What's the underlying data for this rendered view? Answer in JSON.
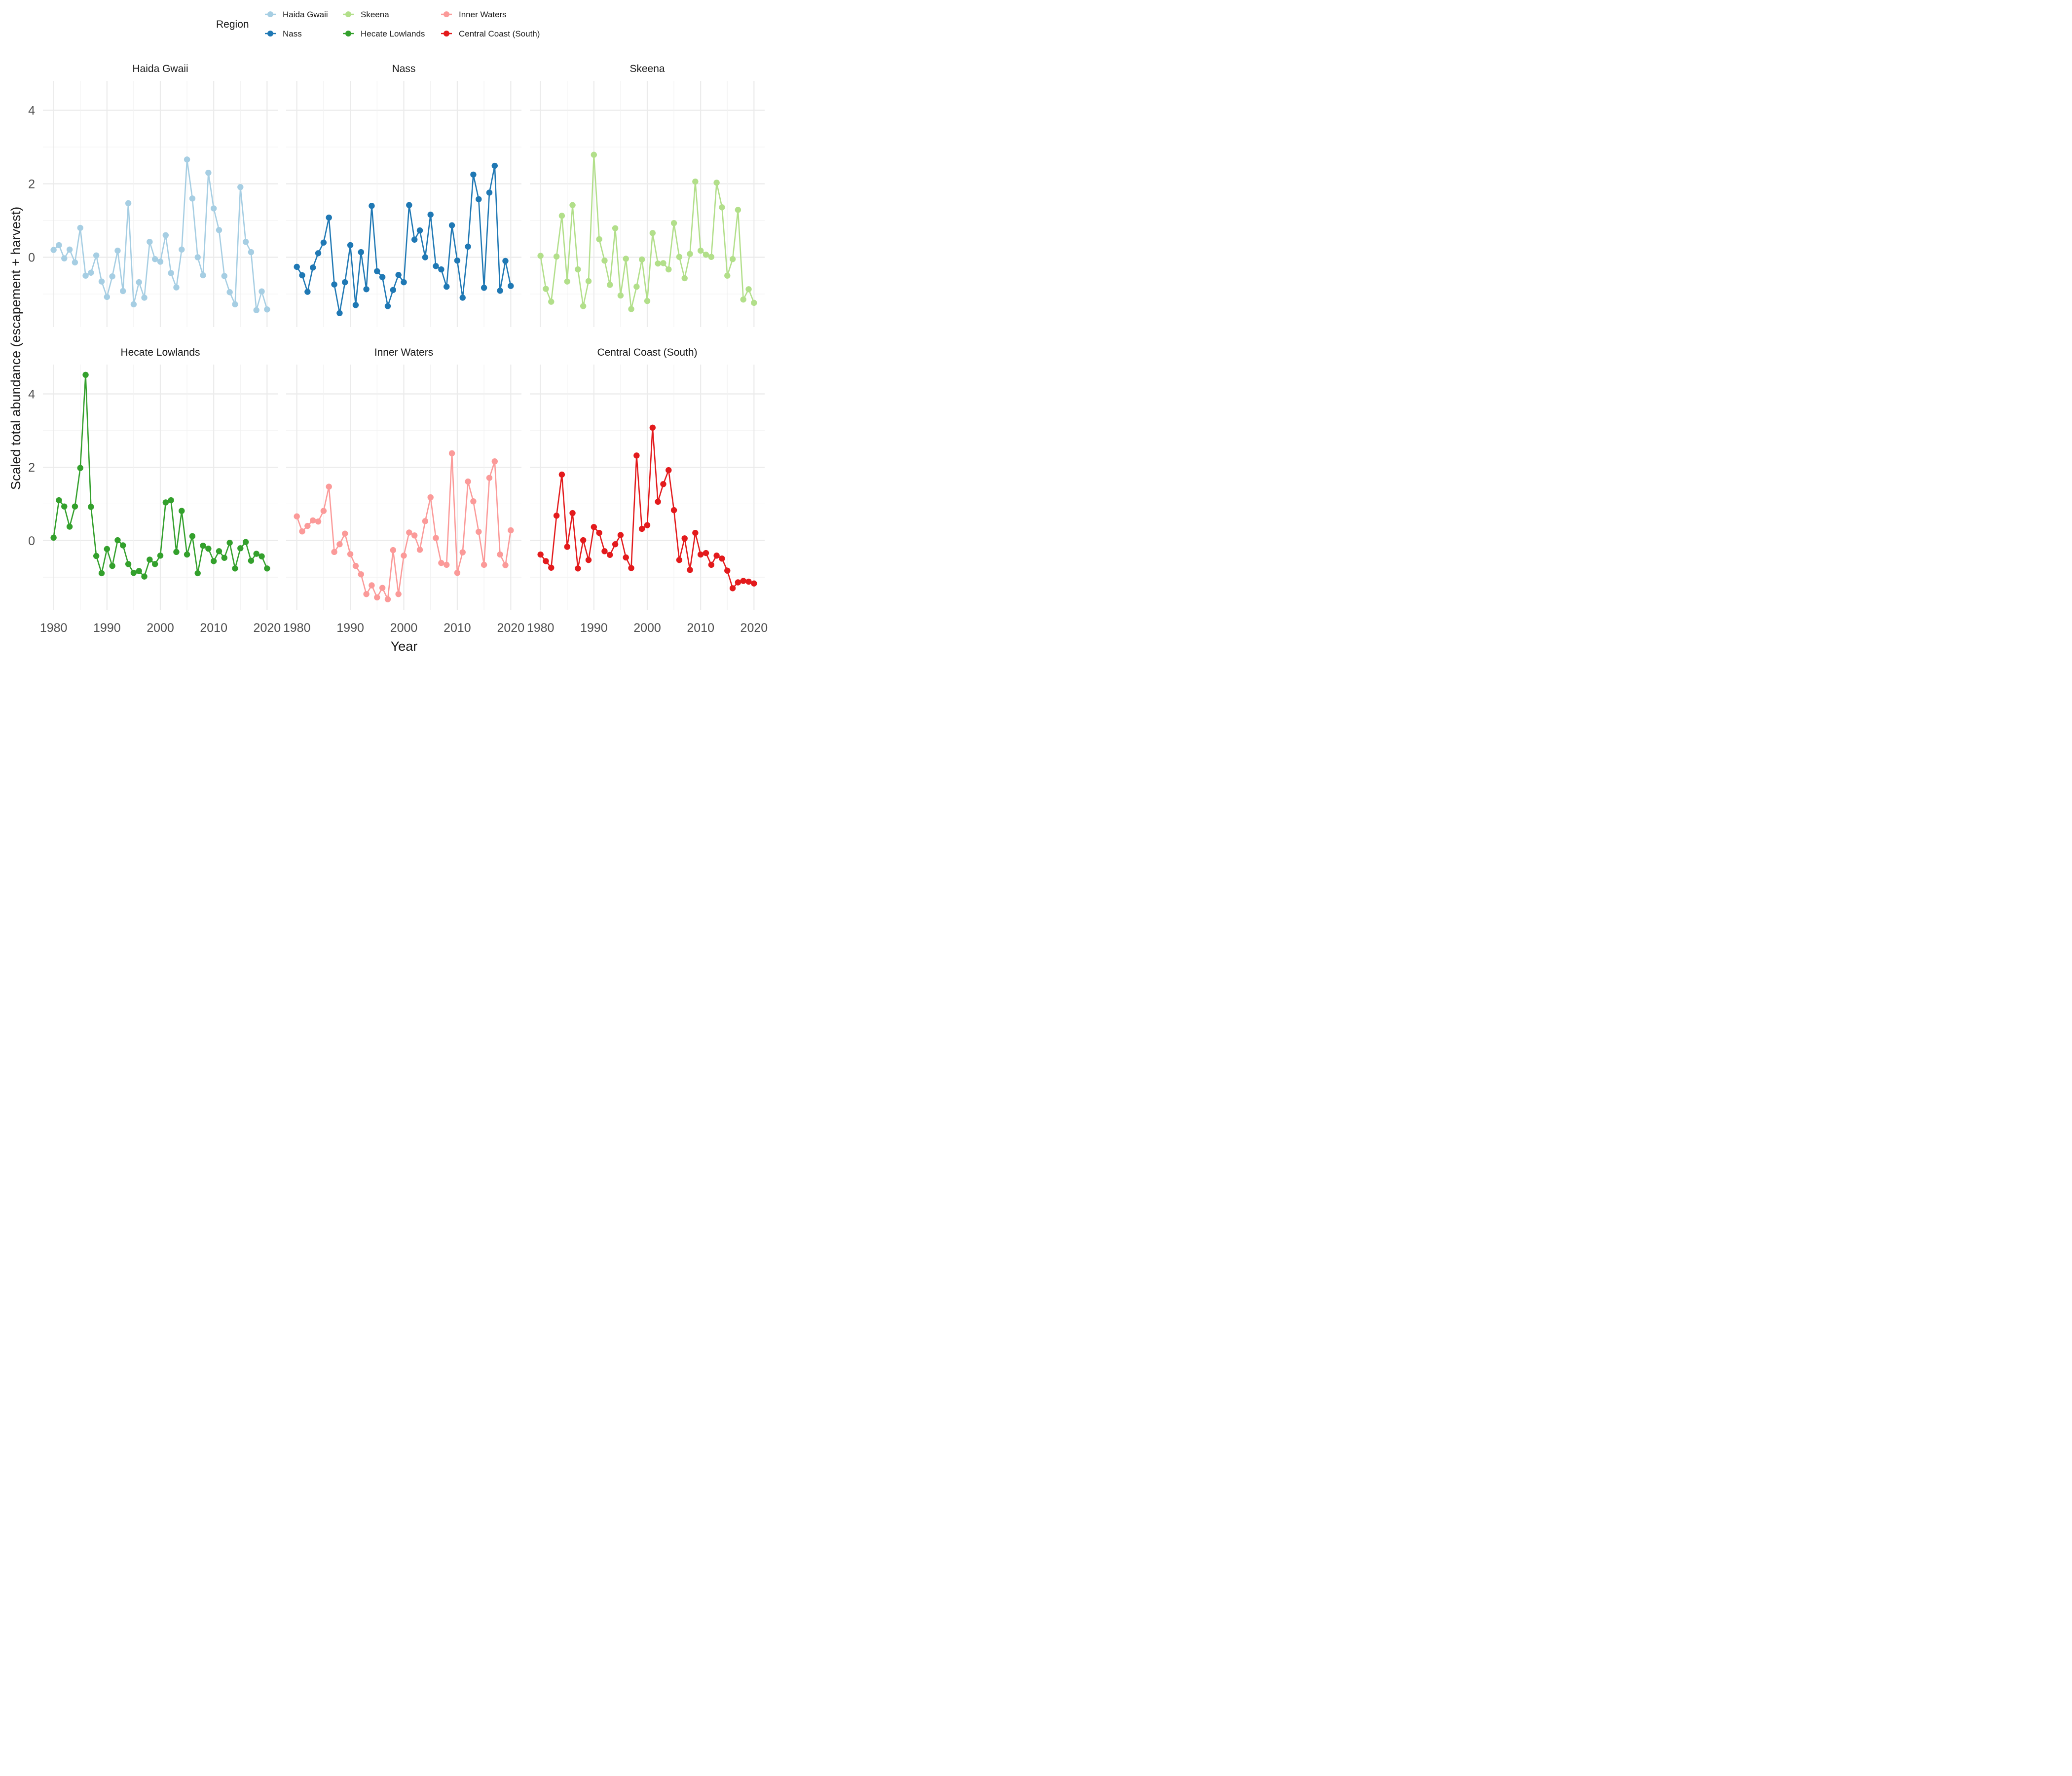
{
  "chart_data": {
    "type": "line",
    "xlabel": "Year",
    "ylabel": "Scaled total abundance (escapement + harvest)",
    "legend": {
      "title": "Region",
      "position": "top",
      "entries": [
        "Haida Gwaii",
        "Nass",
        "Skeena",
        "Hecate Lowlands",
        "Inner Waters",
        "Central Coast (South)"
      ]
    },
    "xlim": [
      1980,
      2020
    ],
    "ylim": [
      -1.9,
      4.8
    ],
    "x_ticks": [
      1980,
      1990,
      2000,
      2010,
      2020
    ],
    "y_ticks": [
      0,
      2,
      4
    ],
    "grid": true,
    "x": [
      1980,
      1981,
      1982,
      1983,
      1984,
      1985,
      1986,
      1987,
      1988,
      1989,
      1990,
      1991,
      1992,
      1993,
      1994,
      1995,
      1996,
      1997,
      1998,
      1999,
      2000,
      2001,
      2002,
      2003,
      2004,
      2005,
      2006,
      2007,
      2008,
      2009,
      2010,
      2011,
      2012,
      2013,
      2014,
      2015,
      2016,
      2017,
      2018,
      2019,
      2020
    ],
    "series": [
      {
        "name": "Haida Gwaii",
        "color": "#a6cee3",
        "values": [
          0.2,
          0.33,
          -0.03,
          0.21,
          -0.14,
          0.8,
          -0.5,
          -0.42,
          0.05,
          -0.66,
          -1.08,
          -0.52,
          0.18,
          -0.92,
          1.47,
          -1.28,
          -0.68,
          -1.1,
          0.42,
          -0.05,
          -0.12,
          0.6,
          -0.43,
          -0.82,
          0.21,
          2.66,
          1.6,
          0.0,
          -0.49,
          2.3,
          1.33,
          0.74,
          -0.51,
          -0.95,
          -1.28,
          1.91,
          0.42,
          0.14,
          -1.44,
          -0.93,
          -1.42
        ]
      },
      {
        "name": "Nass",
        "color": "#1f78b4",
        "values": [
          -0.26,
          -0.49,
          -0.94,
          -0.28,
          0.11,
          0.4,
          1.08,
          -0.74,
          -1.52,
          -0.68,
          0.33,
          -1.3,
          0.14,
          -0.87,
          1.4,
          -0.38,
          -0.54,
          -1.33,
          -0.89,
          -0.48,
          -0.68,
          1.42,
          0.48,
          0.73,
          0.0,
          1.16,
          -0.24,
          -0.33,
          -0.8,
          0.87,
          -0.09,
          -1.1,
          0.29,
          2.25,
          1.58,
          -0.83,
          1.76,
          2.49,
          -0.91,
          -0.1,
          -0.78
        ]
      },
      {
        "name": "Skeena",
        "color": "#b2df8a",
        "values": [
          0.04,
          -0.86,
          -1.21,
          0.02,
          1.13,
          -0.66,
          1.42,
          -0.33,
          -1.33,
          -0.65,
          2.79,
          0.49,
          -0.09,
          -0.75,
          0.79,
          -1.04,
          -0.04,
          -1.41,
          -0.8,
          -0.06,
          -1.19,
          0.66,
          -0.17,
          -0.16,
          -0.33,
          0.93,
          0.01,
          -0.57,
          0.09,
          2.06,
          0.18,
          0.07,
          0.01,
          2.03,
          1.36,
          -0.5,
          -0.05,
          1.29,
          -1.15,
          -0.87,
          -1.24
        ]
      },
      {
        "name": "Hecate Lowlands",
        "color": "#33a02c",
        "values": [
          0.08,
          1.1,
          0.93,
          0.38,
          0.93,
          1.98,
          4.52,
          0.92,
          -0.42,
          -0.89,
          -0.23,
          -0.69,
          0.01,
          -0.13,
          -0.64,
          -0.88,
          -0.83,
          -0.98,
          -0.52,
          -0.64,
          -0.41,
          1.04,
          1.1,
          -0.31,
          0.81,
          -0.38,
          0.12,
          -0.89,
          -0.14,
          -0.22,
          -0.56,
          -0.29,
          -0.47,
          -0.06,
          -0.76,
          -0.21,
          -0.04,
          -0.55,
          -0.36,
          -0.43,
          -0.76
        ]
      },
      {
        "name": "Inner Waters",
        "color": "#fb9a99",
        "values": [
          0.66,
          0.25,
          0.4,
          0.55,
          0.52,
          0.81,
          1.47,
          -0.31,
          -0.1,
          0.19,
          -0.37,
          -0.69,
          -0.92,
          -1.46,
          -1.22,
          -1.55,
          -1.29,
          -1.6,
          -0.26,
          -1.46,
          -0.41,
          0.22,
          0.14,
          -0.25,
          0.53,
          1.18,
          0.07,
          -0.61,
          -0.66,
          2.38,
          -0.88,
          -0.32,
          1.61,
          1.07,
          0.24,
          -0.66,
          1.71,
          2.16,
          -0.38,
          -0.67,
          0.28
        ]
      },
      {
        "name": "Central Coast (South)",
        "color": "#e31a1c",
        "values": [
          -0.38,
          -0.56,
          -0.74,
          0.68,
          1.8,
          -0.17,
          0.75,
          -0.76,
          0.01,
          -0.53,
          0.37,
          0.21,
          -0.29,
          -0.39,
          -0.1,
          0.15,
          -0.46,
          -0.75,
          2.32,
          0.32,
          0.42,
          3.08,
          1.06,
          1.54,
          1.92,
          0.83,
          -0.53,
          0.06,
          -0.8,
          0.21,
          -0.38,
          -0.34,
          -0.66,
          -0.41,
          -0.49,
          -0.82,
          -1.3,
          -1.14,
          -1.1,
          -1.12,
          -1.17
        ]
      }
    ]
  }
}
